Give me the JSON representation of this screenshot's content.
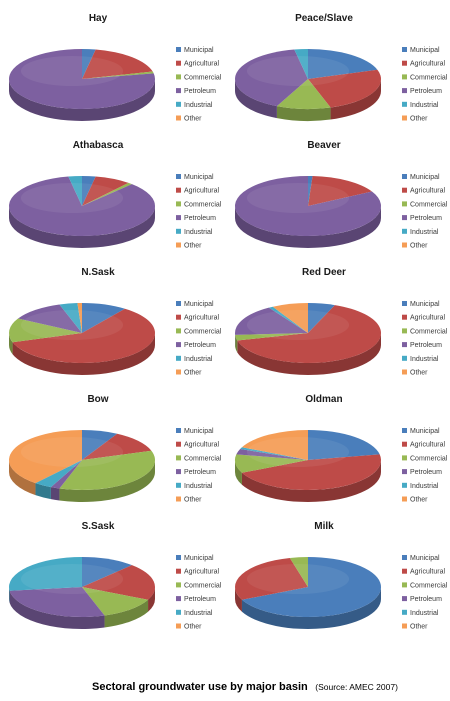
{
  "caption": {
    "main": "Sectoral groundwater use by major basin",
    "source": "(Source: AMEC 2007)"
  },
  "colors": {
    "Municipal": "#4a7ebb",
    "Agricultural": "#be4b48",
    "Commercial": "#98b954",
    "Petroleum": "#7d60a0",
    "Industrial": "#46aac5",
    "Other": "#f59d56"
  },
  "legend_labels": [
    "Municipal",
    "Agricultural",
    "Commercial",
    "Petroleum",
    "Industrial",
    "Other"
  ],
  "chart_data": [
    {
      "type": "pie",
      "title": "Hay",
      "categories": [
        "Municipal",
        "Agricultural",
        "Commercial",
        "Petroleum",
        "Industrial",
        "Other"
      ],
      "values": [
        3,
        18,
        1,
        78,
        0,
        0
      ]
    },
    {
      "type": "pie",
      "title": "Peace/Slave",
      "categories": [
        "Municipal",
        "Agricultural",
        "Commercial",
        "Petroleum",
        "Industrial",
        "Other"
      ],
      "values": [
        20,
        25,
        12,
        40,
        3,
        0
      ]
    },
    {
      "type": "pie",
      "title": "Athabasca",
      "categories": [
        "Municipal",
        "Agricultural",
        "Commercial",
        "Petroleum",
        "Industrial",
        "Other"
      ],
      "values": [
        3,
        8,
        1,
        85,
        3,
        0
      ]
    },
    {
      "type": "pie",
      "title": "Beaver",
      "categories": [
        "Municipal",
        "Agricultural",
        "Commercial",
        "Petroleum",
        "Industrial",
        "Other"
      ],
      "values": [
        1,
        16,
        0,
        83,
        0,
        0
      ]
    },
    {
      "type": "pie",
      "title": "N.Sask",
      "categories": [
        "Municipal",
        "Agricultural",
        "Commercial",
        "Petroleum",
        "Industrial",
        "Other"
      ],
      "values": [
        10,
        60,
        13,
        12,
        4,
        1
      ]
    },
    {
      "type": "pie",
      "title": "Red Deer",
      "categories": [
        "Municipal",
        "Agricultural",
        "Commercial",
        "Petroleum",
        "Industrial",
        "Other"
      ],
      "values": [
        6,
        65,
        3,
        17,
        1,
        8
      ]
    },
    {
      "type": "pie",
      "title": "Bow",
      "categories": [
        "Municipal",
        "Agricultural",
        "Commercial",
        "Petroleum",
        "Industrial",
        "Other"
      ],
      "values": [
        8,
        12,
        35,
        2,
        4,
        39
      ]
    },
    {
      "type": "pie",
      "title": "Oldman",
      "categories": [
        "Municipal",
        "Agricultural",
        "Commercial",
        "Petroleum",
        "Industrial",
        "Other"
      ],
      "values": [
        22,
        46,
        10,
        3,
        1,
        18
      ]
    },
    {
      "type": "pie",
      "title": "S.Sask",
      "categories": [
        "Municipal",
        "Agricultural",
        "Commercial",
        "Petroleum",
        "Industrial",
        "Other"
      ],
      "values": [
        12,
        20,
        13,
        28,
        27,
        0
      ]
    },
    {
      "type": "pie",
      "title": "Milk",
      "categories": [
        "Municipal",
        "Agricultural",
        "Commercial",
        "Petroleum",
        "Industrial",
        "Other"
      ],
      "values": [
        68,
        28,
        4,
        0,
        0,
        0
      ]
    }
  ]
}
